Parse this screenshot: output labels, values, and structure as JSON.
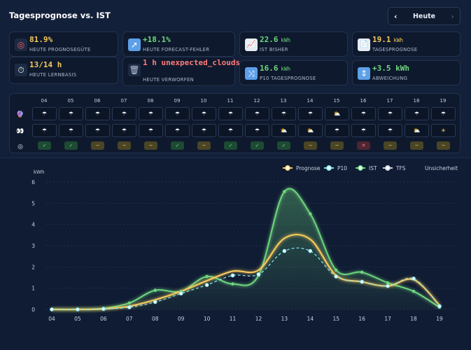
{
  "header": {
    "title": "Tagesprognose vs. IST",
    "nav_prev": "‹",
    "nav_label": "Heute",
    "nav_next": "›"
  },
  "kpis": {
    "prognosegute": {
      "value": "81.9%",
      "label": "HEUTE PROGNOSEGÜTE"
    },
    "forecast_fehler": {
      "value": "+18.1%",
      "label": "HEUTE FORECAST-FEHLER"
    },
    "ist_bisher": {
      "value": "22.6",
      "unit": "kWh",
      "label": "IST BISHER"
    },
    "tagesprognose": {
      "value": "19.1",
      "unit": "kWh",
      "label": "TAGESPROGNOSE"
    },
    "lernbasis": {
      "value": "13/14 h",
      "label": "HEUTE LERNBASIS"
    },
    "verworfen": {
      "value": "1 h unexpected_clouds",
      "label": "HEUTE VERWORFEN"
    },
    "p10": {
      "value": "16.6",
      "unit": "kWh",
      "label": "P10 TAGESPROGNOSE"
    },
    "abweichung": {
      "value": "+3.5 kWh",
      "label": "ABWEICHUNG"
    }
  },
  "hour_grid": {
    "hours": [
      "04",
      "05",
      "06",
      "07",
      "08",
      "09",
      "10",
      "11",
      "12",
      "13",
      "14",
      "15",
      "16",
      "17",
      "18",
      "19"
    ],
    "forecast_row": [
      "rain",
      "rain",
      "rain",
      "rain",
      "rain",
      "rain",
      "rain",
      "rain",
      "rain",
      "rain",
      "rain",
      "sun-cloud",
      "rain",
      "rain",
      "rain",
      "rain"
    ],
    "observed_row": [
      "rain",
      "rain",
      "rain",
      "rain",
      "rain",
      "rain",
      "rain",
      "rain",
      "rain",
      "sun-cloud",
      "sun-cloud",
      "rain",
      "rain",
      "rain",
      "sun-cloud",
      "sun"
    ],
    "eval_row": [
      "ok",
      "ok",
      "mid",
      "mid",
      "mid",
      "ok",
      "mid",
      "ok",
      "ok",
      "ok",
      "mid",
      "mid",
      "bad",
      "mid",
      "mid",
      "mid"
    ],
    "glyphs": {
      "rain": "☂",
      "sun-cloud": "⛅",
      "sun": "☀",
      "ok": "✓",
      "mid": "~",
      "bad": "✕"
    }
  },
  "legend": {
    "prognose": "Prognose",
    "p10": "P10",
    "ist": "IST",
    "tfs": "TFS",
    "unsicherheit": "Unsicherheit"
  },
  "colors": {
    "prognose": "#f5c95c",
    "p10": "#7fe0e8",
    "ist": "#6ed67e",
    "tfs": "#c9d2e1"
  },
  "chart_data": {
    "type": "line",
    "ylabel": "kWh",
    "ylim": [
      0,
      6
    ],
    "yticks": [
      0,
      1,
      2,
      3,
      4,
      5,
      6
    ],
    "x": [
      "04",
      "05",
      "06",
      "07",
      "08",
      "09",
      "10",
      "11",
      "12",
      "13",
      "14",
      "15",
      "16",
      "17",
      "18",
      "19"
    ],
    "series": [
      {
        "name": "Prognose",
        "values": [
          0,
          0,
          0.02,
          0.15,
          0.45,
          0.85,
          1.35,
          1.8,
          1.85,
          3.35,
          3.3,
          1.6,
          1.3,
          1.1,
          1.4,
          0.2
        ]
      },
      {
        "name": "P10",
        "values": [
          0,
          0,
          0.02,
          0.1,
          0.35,
          0.75,
          1.15,
          1.6,
          1.65,
          2.75,
          2.75,
          1.55,
          1.3,
          1.1,
          1.45,
          0.15
        ]
      },
      {
        "name": "IST",
        "values": [
          0,
          0,
          0.05,
          0.3,
          0.9,
          0.85,
          1.55,
          1.2,
          1.6,
          5.55,
          4.5,
          1.85,
          1.75,
          1.25,
          0.85,
          0.1
        ]
      }
    ],
    "grid": true,
    "legend_position": "top-right"
  }
}
